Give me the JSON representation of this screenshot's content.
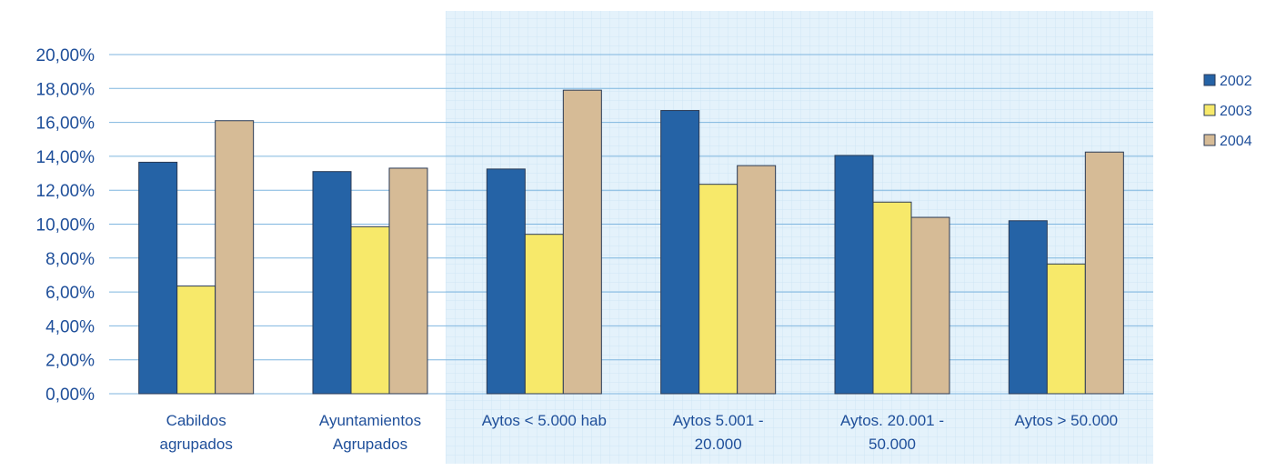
{
  "chart_data": {
    "type": "bar",
    "categories": [
      [
        "Cabildos",
        "agrupados"
      ],
      [
        "Ayuntamientos",
        "Agrupados"
      ],
      [
        "Aytos < 5.000 hab"
      ],
      [
        "Aytos 5.001 -",
        "20.000"
      ],
      [
        "Aytos. 20.001 -",
        "50.000"
      ],
      [
        "Aytos > 50.000"
      ]
    ],
    "series": [
      {
        "name": "2002",
        "color": "#2563a6",
        "values": [
          13.65,
          13.1,
          13.25,
          16.7,
          14.05,
          10.2
        ]
      },
      {
        "name": "2003",
        "color": "#f7e96a",
        "values": [
          6.35,
          9.85,
          9.4,
          12.35,
          11.3,
          7.65
        ]
      },
      {
        "name": "2004",
        "color": "#d6bb96",
        "values": [
          16.1,
          13.3,
          17.9,
          13.45,
          10.4,
          14.25
        ]
      }
    ],
    "y_ticks": [
      "0,00%",
      "2,00%",
      "4,00%",
      "6,00%",
      "8,00%",
      "10,00%",
      "12,00%",
      "14,00%",
      "16,00%",
      "18,00%",
      "20,00%"
    ],
    "ylim": [
      0,
      20
    ],
    "grid": true,
    "legend_position": "right",
    "colors": {
      "axis_text": "#1f4f9a",
      "gridline": "#7fb6df",
      "highlight_band": "#e4f2fb"
    }
  }
}
